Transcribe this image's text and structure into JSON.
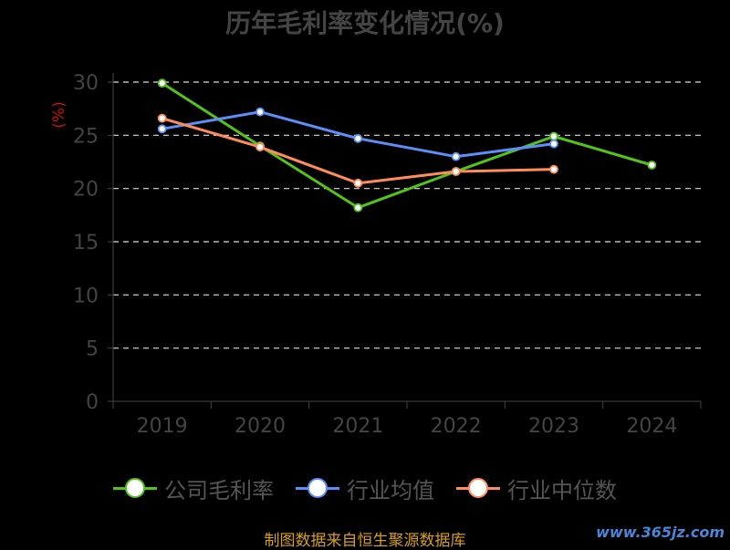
{
  "chart_data": {
    "type": "line",
    "title": "历年毛利率变化情况(%)",
    "ylabel": "(%)",
    "xlabel": "",
    "categories": [
      "2019",
      "2020",
      "2021",
      "2022",
      "2023",
      "2024"
    ],
    "ylim": [
      0,
      30
    ],
    "yticks": [
      0,
      5,
      10,
      15,
      20,
      25,
      30
    ],
    "grid": true,
    "legend_position": "bottom",
    "series": [
      {
        "name": "公司毛利率",
        "color": "#52c41a",
        "values": [
          29.9,
          24.0,
          18.2,
          21.6,
          24.9,
          22.2
        ]
      },
      {
        "name": "行业均值",
        "color": "#5b8ff9",
        "values": [
          25.6,
          27.2,
          24.7,
          23.0,
          24.2,
          null
        ]
      },
      {
        "name": "行业中位数",
        "color": "#ff8c5a",
        "values": [
          26.6,
          23.9,
          20.5,
          21.6,
          21.8,
          null
        ]
      }
    ]
  },
  "footer": {
    "source": "制图数据来自恒生聚源数据库",
    "watermark": "www.365jz.com"
  }
}
